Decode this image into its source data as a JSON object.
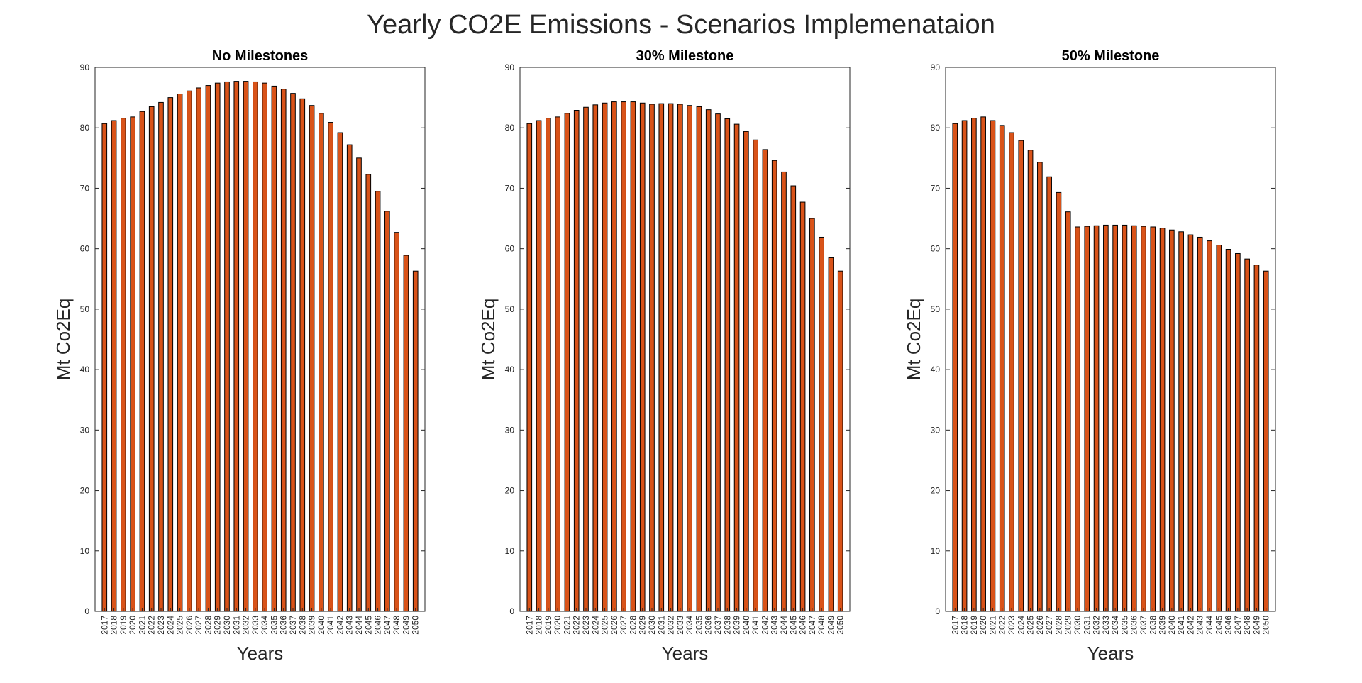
{
  "figure": {
    "title": "Yearly CO2E Emissions - Scenarios Implemenataion"
  },
  "chart_data": [
    {
      "type": "bar",
      "title": "No Milestones",
      "xlabel": "Years",
      "ylabel": "Mt Co2Eq",
      "ylim": [
        0,
        90
      ],
      "yticks": [
        0,
        10,
        20,
        30,
        40,
        50,
        60,
        70,
        80,
        90
      ],
      "grid": false,
      "bar_color": "#D95319",
      "categories": [
        "2017",
        "2018",
        "2019",
        "2020",
        "2021",
        "2022",
        "2023",
        "2024",
        "2025",
        "2026",
        "2027",
        "2028",
        "2029",
        "2030",
        "2031",
        "2032",
        "2033",
        "2034",
        "2035",
        "2036",
        "2037",
        "2038",
        "2039",
        "2040",
        "2041",
        "2042",
        "2043",
        "2044",
        "2045",
        "2046",
        "2047",
        "2048",
        "2049",
        "2050"
      ],
      "values": [
        80.7,
        81.2,
        81.6,
        81.8,
        82.7,
        83.5,
        84.2,
        85.0,
        85.6,
        86.1,
        86.6,
        87.0,
        87.4,
        87.6,
        87.7,
        87.7,
        87.6,
        87.4,
        86.9,
        86.4,
        85.7,
        84.8,
        83.7,
        82.4,
        80.9,
        79.2,
        77.2,
        75.0,
        72.3,
        69.5,
        66.2,
        62.7,
        58.9,
        56.3
      ]
    },
    {
      "type": "bar",
      "title": "30% Milestone",
      "xlabel": "Years",
      "ylabel": "Mt Co2Eq",
      "ylim": [
        0,
        90
      ],
      "yticks": [
        0,
        10,
        20,
        30,
        40,
        50,
        60,
        70,
        80,
        90
      ],
      "grid": false,
      "bar_color": "#D95319",
      "categories": [
        "2017",
        "2018",
        "2019",
        "2020",
        "2021",
        "2022",
        "2023",
        "2024",
        "2025",
        "2026",
        "2027",
        "2028",
        "2029",
        "2030",
        "2031",
        "2032",
        "2033",
        "2034",
        "2035",
        "2036",
        "2037",
        "2038",
        "2039",
        "2040",
        "2041",
        "2042",
        "2043",
        "2044",
        "2045",
        "2046",
        "2047",
        "2048",
        "2049",
        "2050"
      ],
      "values": [
        80.7,
        81.2,
        81.6,
        81.8,
        82.4,
        82.9,
        83.4,
        83.8,
        84.1,
        84.3,
        84.3,
        84.3,
        84.1,
        83.9,
        84.0,
        84.0,
        83.9,
        83.7,
        83.5,
        83.0,
        82.3,
        81.5,
        80.6,
        79.4,
        78.0,
        76.4,
        74.6,
        72.7,
        70.4,
        67.7,
        65.0,
        61.9,
        58.5,
        56.3
      ]
    },
    {
      "type": "bar",
      "title": "50% Milestone",
      "xlabel": "Years",
      "ylabel": "Mt Co2Eq",
      "ylim": [
        0,
        90
      ],
      "yticks": [
        0,
        10,
        20,
        30,
        40,
        50,
        60,
        70,
        80,
        90
      ],
      "grid": false,
      "bar_color": "#D95319",
      "categories": [
        "2017",
        "2018",
        "2019",
        "2020",
        "2021",
        "2022",
        "2023",
        "2024",
        "2025",
        "2026",
        "2027",
        "2028",
        "2029",
        "2030",
        "2031",
        "2032",
        "2033",
        "2034",
        "2035",
        "2036",
        "2037",
        "2038",
        "2039",
        "2040",
        "2041",
        "2042",
        "2043",
        "2044",
        "2045",
        "2046",
        "2047",
        "2048",
        "2049",
        "2050"
      ],
      "values": [
        80.7,
        81.2,
        81.6,
        81.8,
        81.2,
        80.4,
        79.2,
        77.9,
        76.3,
        74.3,
        71.9,
        69.3,
        66.1,
        63.6,
        63.7,
        63.8,
        63.9,
        63.9,
        63.9,
        63.8,
        63.7,
        63.6,
        63.4,
        63.1,
        62.8,
        62.3,
        61.9,
        61.3,
        60.6,
        59.9,
        59.2,
        58.3,
        57.3,
        56.3
      ]
    }
  ]
}
